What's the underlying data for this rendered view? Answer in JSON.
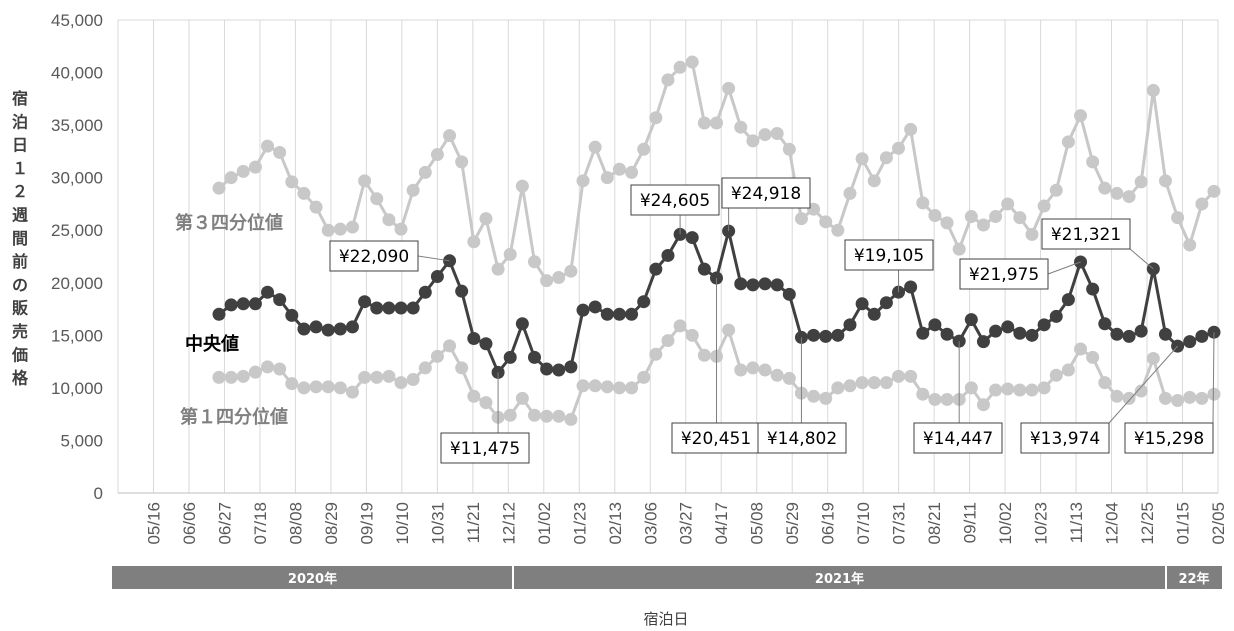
{
  "chart_data": {
    "type": "line",
    "xlabel": "宿泊日",
    "ylabel": "宿泊日１２週間前の販売価格",
    "ylim": [
      0,
      45000
    ],
    "y_ticks": [
      "0",
      "5,000",
      "10,000",
      "15,000",
      "20,000",
      "25,000",
      "30,000",
      "35,000",
      "40,000",
      "45,000"
    ],
    "x_tick_labels": [
      "05/16",
      "06/06",
      "06/27",
      "07/18",
      "08/08",
      "08/29",
      "09/19",
      "10/10",
      "10/31",
      "11/21",
      "12/12",
      "01/02",
      "01/23",
      "02/13",
      "03/06",
      "03/27",
      "04/17",
      "05/08",
      "05/29",
      "06/19",
      "07/10",
      "07/31",
      "08/21",
      "09/11",
      "10/02",
      "10/23",
      "11/13",
      "12/04",
      "12/25",
      "01/15",
      "02/05"
    ],
    "years": [
      "2020年",
      "2021年",
      "22年"
    ],
    "grid": "vertical",
    "series": [
      {
        "name": "第３四分位値",
        "color": "#c8c8c8",
        "label_color": "#808080",
        "values": [
          29000,
          30000,
          30600,
          31000,
          33000,
          32400,
          29600,
          28500,
          27200,
          25000,
          25100,
          25300,
          29700,
          28000,
          26000,
          25100,
          28800,
          30500,
          32200,
          34000,
          31500,
          23900,
          26100,
          21300,
          22700,
          29200,
          22000,
          20200,
          20500,
          21100,
          29700,
          32900,
          30000,
          30800,
          30500,
          32700,
          35700,
          39300,
          40500,
          41000,
          35200,
          35200,
          38500,
          34800,
          33500,
          34100,
          34200,
          32700,
          26100,
          27000,
          25800,
          25000,
          28500,
          31800,
          29700,
          31900,
          32800,
          34600,
          27600,
          26400,
          25700,
          23200,
          26300,
          25500,
          26300,
          27500,
          26200,
          24600,
          27300,
          28800,
          33400,
          35900,
          31500,
          29000,
          28500,
          28200,
          29600,
          38300,
          29700,
          26200,
          23600,
          27500,
          28700
        ]
      },
      {
        "name": "中央値",
        "color": "#404040",
        "label_color": "#000000",
        "values": [
          17000,
          17900,
          18000,
          18000,
          19100,
          18400,
          16900,
          15600,
          15800,
          15500,
          15600,
          15800,
          18200,
          17600,
          17600,
          17600,
          17600,
          19100,
          20600,
          22090,
          19200,
          14700,
          14200,
          11475,
          12900,
          16100,
          12900,
          11800,
          11700,
          12000,
          17400,
          17700,
          17000,
          17000,
          17000,
          18200,
          21300,
          22600,
          24605,
          24300,
          21300,
          20451,
          24918,
          19900,
          19800,
          19900,
          19800,
          18900,
          14802,
          15000,
          14900,
          15000,
          16000,
          18000,
          17000,
          18100,
          19105,
          19600,
          15200,
          16000,
          15100,
          14447,
          16500,
          14400,
          15400,
          15800,
          15200,
          15000,
          16000,
          16800,
          18400,
          21975,
          19400,
          16100,
          15100,
          14900,
          15400,
          21321,
          15100,
          13974,
          14400,
          14900,
          15298
        ]
      },
      {
        "name": "第１四分位値",
        "color": "#c8c8c8",
        "label_color": "#808080",
        "values": [
          11000,
          11000,
          11100,
          11500,
          12000,
          11800,
          10400,
          10000,
          10100,
          10100,
          10000,
          9600,
          11000,
          11000,
          11100,
          10500,
          10800,
          11900,
          13000,
          14000,
          11900,
          9200,
          8600,
          7200,
          7400,
          9000,
          7400,
          7300,
          7300,
          7000,
          10200,
          10200,
          10100,
          10000,
          10000,
          11000,
          13200,
          14500,
          15900,
          15000,
          13100,
          13000,
          15500,
          11700,
          11900,
          11700,
          11200,
          10900,
          9500,
          9200,
          9000,
          10000,
          10200,
          10500,
          10500,
          10500,
          11100,
          11100,
          9400,
          8900,
          8900,
          8900,
          10000,
          8400,
          9800,
          9900,
          9800,
          9800,
          10000,
          11200,
          11700,
          13700,
          12900,
          10500,
          9200,
          9000,
          9700,
          12800,
          9000,
          8800,
          9100,
          9000,
          9400
        ]
      }
    ],
    "callouts": [
      {
        "text": "¥22,090",
        "index": 19
      },
      {
        "text": "¥11,475",
        "index": 23
      },
      {
        "text": "¥24,605",
        "index": 38
      },
      {
        "text": "¥20,451",
        "index": 41
      },
      {
        "text": "¥24,918",
        "index": 42
      },
      {
        "text": "¥14,802",
        "index": 48
      },
      {
        "text": "¥19,105",
        "index": 56
      },
      {
        "text": "¥14,447",
        "index": 61
      },
      {
        "text": "¥21,975",
        "index": 71
      },
      {
        "text": "¥21,321",
        "index": 77
      },
      {
        "text": "¥13,974",
        "index": 79
      },
      {
        "text": "¥15,298",
        "index": 82
      }
    ]
  }
}
